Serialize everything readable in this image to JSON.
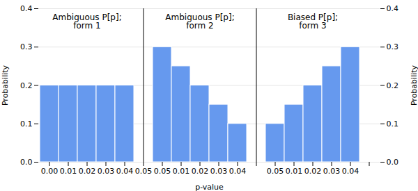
{
  "chart_data": {
    "type": "bar",
    "categories": [
      "0.00",
      "0.01",
      "0.02",
      "0.03",
      "0.04",
      "0.05",
      "0.05",
      "0.01",
      "0.02",
      "0.03",
      "0.04",
      null,
      "0.05",
      "0.01",
      "0.02",
      "0.03",
      "0.04",
      null
    ],
    "values": [
      0.2,
      0.2,
      0.2,
      0.2,
      0.2,
      null,
      0.3,
      0.25,
      0.2,
      0.15,
      0.1,
      null,
      0.1,
      0.15,
      0.2,
      0.25,
      0.3,
      null
    ],
    "color": "#6699ee",
    "xlabel": "p-value",
    "ylabel": "Probability",
    "ylim": [
      0.0,
      0.4
    ],
    "yticks": [
      {
        "value": 0.0,
        "label": "0.0"
      },
      0.1,
      0.2,
      0.3,
      0.4
    ],
    "grid": true,
    "dividers": [
      5,
      11
    ],
    "annotations": [
      {
        "text": "Ambiguous P[p];\nform 1",
        "x": 2,
        "y": 0.385
      },
      {
        "text": "Ambiguous P[p];\nform 2",
        "x": 8,
        "y": 0.385
      },
      {
        "text": "Biased P[p];\nform 3",
        "x": 14,
        "y": 0.385
      }
    ]
  }
}
